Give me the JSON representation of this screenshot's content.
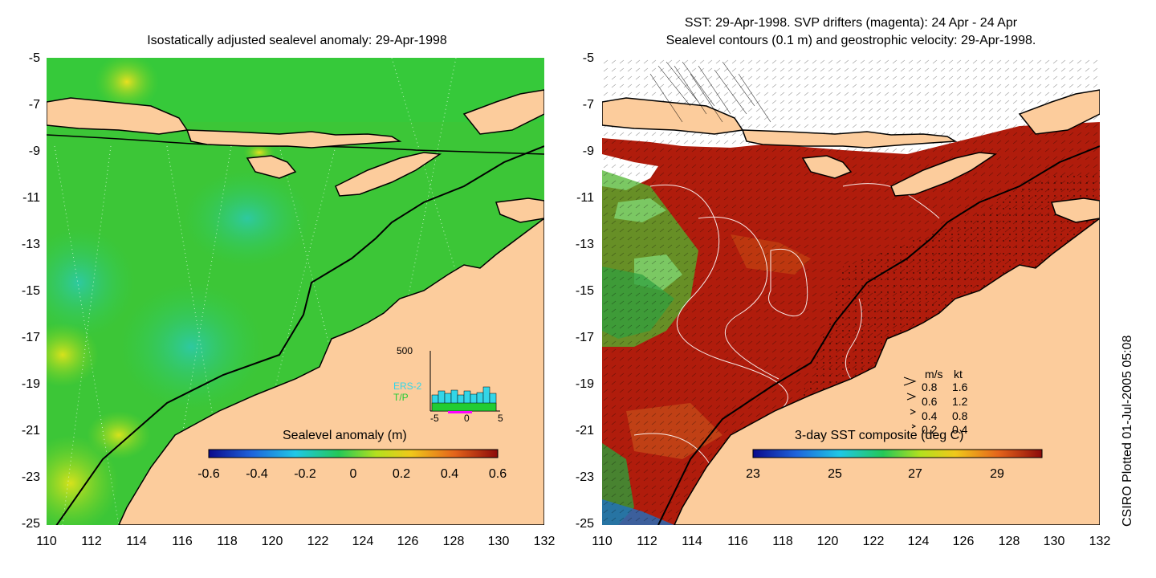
{
  "left": {
    "title": "Isostatically adjusted sealevel anomaly: 29-Apr-1998",
    "yticks": [
      "-5",
      "-7",
      "-9",
      "-11",
      "-13",
      "-15",
      "-17",
      "-19",
      "-21",
      "-23",
      "-25"
    ],
    "xticks": [
      "110",
      "112",
      "114",
      "116",
      "118",
      "120",
      "122",
      "124",
      "126",
      "128",
      "130",
      "132"
    ],
    "colorbar": {
      "label": "Sealevel anomaly (m)",
      "ticks": [
        "-0.6",
        "-0.4",
        "-0.2",
        "0",
        "0.2",
        "0.4",
        "0.6"
      ]
    },
    "inset": {
      "ymax": "500",
      "xticks": [
        "-5",
        "0",
        "5"
      ],
      "series": [
        {
          "name": "ERS-2",
          "color": "#33d6e8"
        },
        {
          "name": "T/P",
          "color": "#22cc33"
        }
      ]
    }
  },
  "right": {
    "title_line1": "SST: 29-Apr-1998. SVP drifters (magenta): 24 Apr - 24 Apr",
    "title_line2": "Sealevel contours (0.1 m) and geostrophic velocity: 29-Apr-1998.",
    "yticks": [
      "-5",
      "-7",
      "-9",
      "-11",
      "-13",
      "-15",
      "-17",
      "-19",
      "-21",
      "-23",
      "-25"
    ],
    "xticks": [
      "110",
      "112",
      "114",
      "116",
      "118",
      "120",
      "122",
      "124",
      "126",
      "128",
      "130",
      "132"
    ],
    "colorbar": {
      "label": "3-day SST composite (deg C)",
      "ticks": [
        "23",
        "25",
        "27",
        "29"
      ]
    },
    "speed_legend": {
      "header_ms": "m/s",
      "header_kt": "kt",
      "rows": [
        {
          "ms": "0.8",
          "kt": "1.6"
        },
        {
          "ms": "0.6",
          "kt": "1.2"
        },
        {
          "ms": "0.4",
          "kt": "0.8"
        },
        {
          "ms": "0.2",
          "kt": "0.4"
        }
      ]
    }
  },
  "credit": "CSIRO Plotted 01-Jul-2005 05:08",
  "colors": {
    "land": "#fccc9c",
    "sea_green": "#2ecc3a",
    "sst_red": "#b01c0c",
    "contour": "#ffffff"
  }
}
